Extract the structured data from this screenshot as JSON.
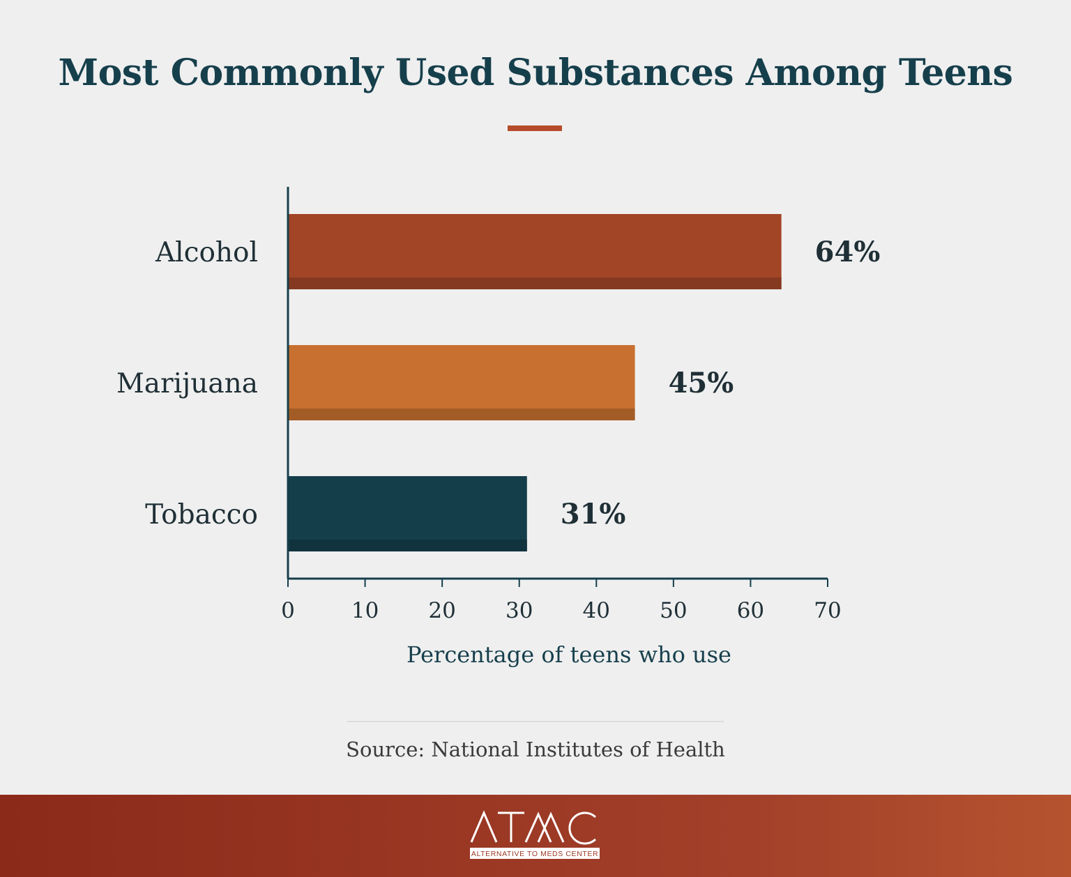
{
  "chart_data": {
    "type": "bar",
    "orientation": "horizontal",
    "title": "Most Commonly Used Substances Among Teens",
    "categories": [
      "Alcohol",
      "Marijuana",
      "Tobacco"
    ],
    "values": [
      64,
      45,
      31
    ],
    "value_labels": [
      "64%",
      "45%",
      "31%"
    ],
    "colors": [
      "#a24527",
      "#c87030",
      "#143e4a"
    ],
    "xlabel": "Percentage of teens who use",
    "xlim": [
      0,
      70
    ],
    "xticks": [
      0,
      10,
      20,
      30,
      40,
      50,
      60,
      70
    ],
    "grid": false,
    "legend": "none"
  },
  "source": "Source: National Institutes of Health",
  "footer": {
    "logo_text": "ATMC",
    "logo_subtext": "ALTERNATIVE TO MEDS CENTER",
    "background": "#9c3a24"
  },
  "accent_color": "#b54b2b",
  "title_color": "#163f4c"
}
